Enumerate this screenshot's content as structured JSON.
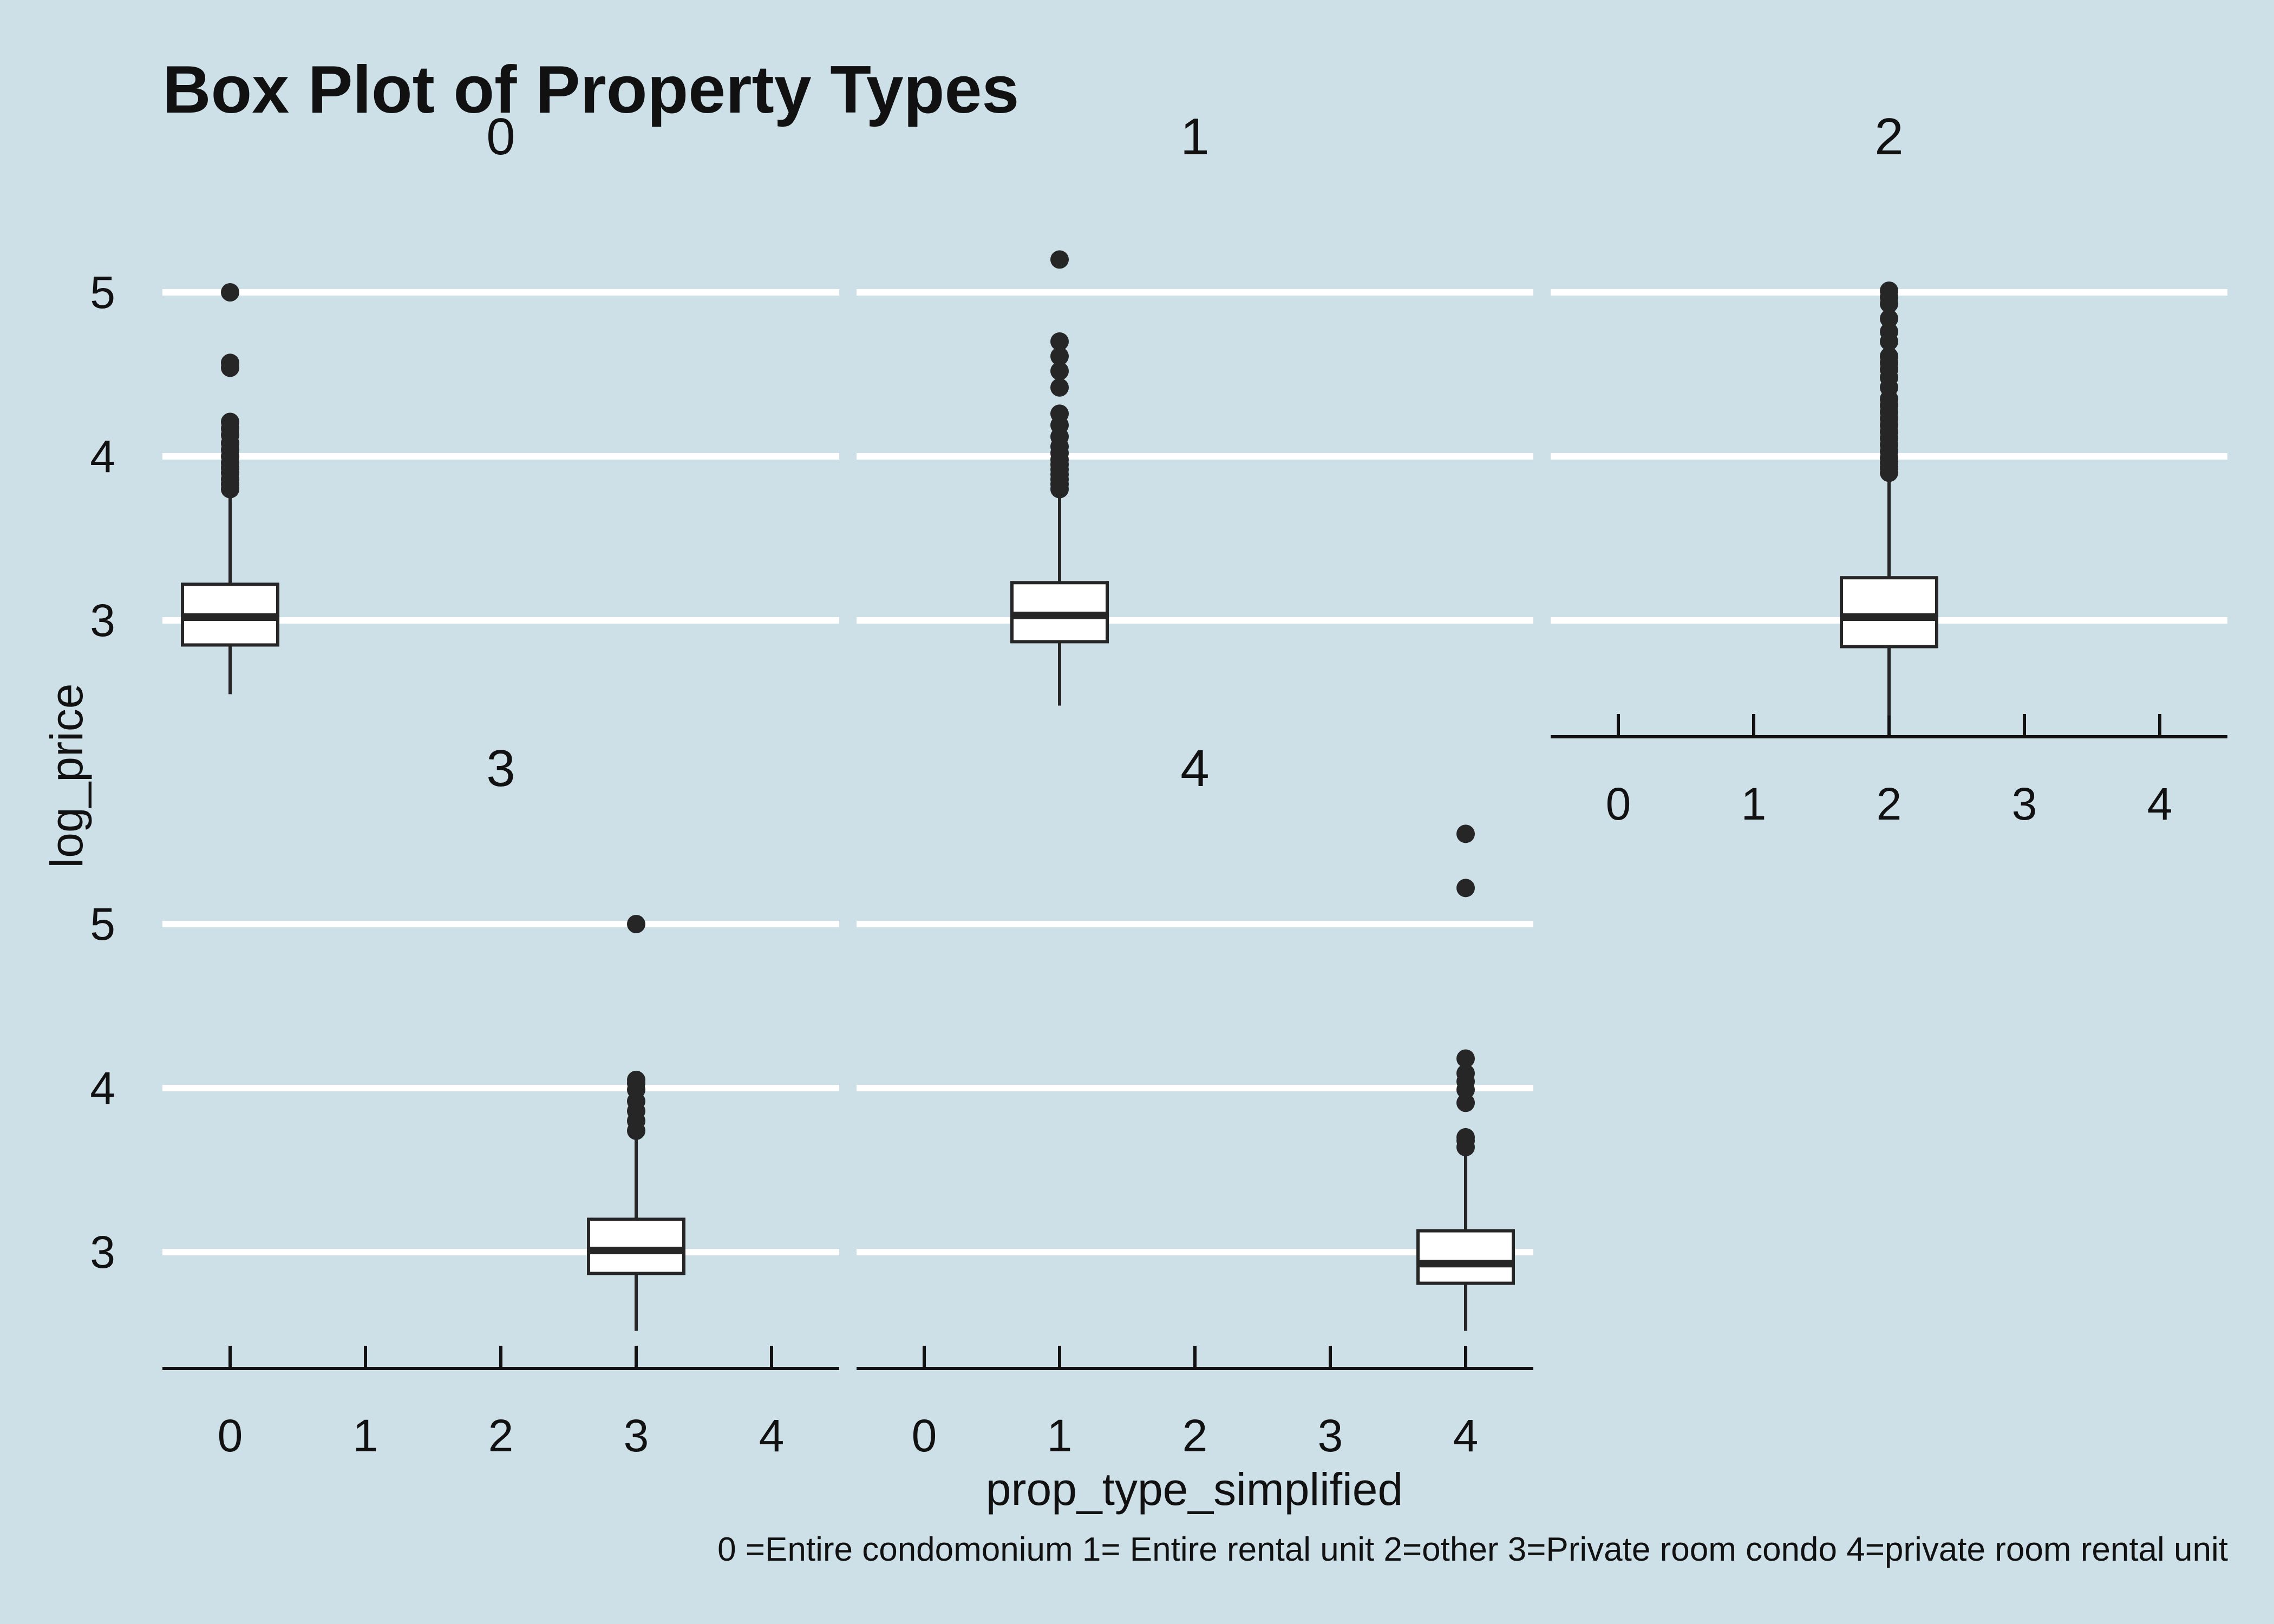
{
  "chart_data": {
    "type": "box",
    "title": "Box Plot of Property Types",
    "xlabel": "prop_type_simplified",
    "ylabel": "log_price",
    "caption": "0 =Entire condomonium 1= Entire rental unit 2=other 3=Private room condo 4=private room rental unit",
    "x_categories": [
      "0",
      "1",
      "2",
      "3",
      "4"
    ],
    "y_ticks": [
      3,
      4,
      5
    ],
    "ylim": [
      2.3,
      5.7
    ],
    "grid": "horizontal major lines only",
    "colors": {
      "background": "#cddfe7",
      "grid": "#ffffff",
      "box_fill": "#ffffff",
      "box_line": "#262626",
      "axis": "#111111"
    },
    "facets": [
      {
        "label": "0",
        "category": 0,
        "box": {
          "lower_whisker": 2.55,
          "q1": 2.85,
          "median": 3.02,
          "q3": 3.22,
          "upper_whisker": 3.78
        },
        "outliers": [
          3.8,
          3.83,
          3.86,
          3.9,
          3.93,
          3.96,
          4.0,
          4.04,
          4.08,
          4.13,
          4.17,
          4.21,
          4.54,
          4.57,
          5.0
        ]
      },
      {
        "label": "1",
        "category": 1,
        "box": {
          "lower_whisker": 2.48,
          "q1": 2.87,
          "median": 3.03,
          "q3": 3.23,
          "upper_whisker": 3.78
        },
        "outliers": [
          3.8,
          3.83,
          3.86,
          3.89,
          3.92,
          3.95,
          3.98,
          4.02,
          4.06,
          4.12,
          4.19,
          4.26,
          4.42,
          4.52,
          4.61,
          4.7,
          5.2
        ]
      },
      {
        "label": "2",
        "category": 2,
        "box": {
          "lower_whisker": 2.42,
          "q1": 2.84,
          "median": 3.02,
          "q3": 3.26,
          "upper_whisker": 3.88
        },
        "outliers": [
          3.9,
          3.93,
          3.96,
          3.99,
          4.03,
          4.07,
          4.11,
          4.15,
          4.19,
          4.23,
          4.27,
          4.31,
          4.35,
          4.42,
          4.48,
          4.53,
          4.57,
          4.61,
          4.7,
          4.76,
          4.84,
          4.93,
          4.97,
          5.01
        ]
      },
      {
        "label": "3",
        "category": 3,
        "box": {
          "lower_whisker": 2.52,
          "q1": 2.87,
          "median": 3.01,
          "q3": 3.2,
          "upper_whisker": 3.72
        },
        "outliers": [
          3.74,
          3.8,
          3.86,
          3.92,
          3.99,
          4.03,
          4.05,
          5.0
        ]
      },
      {
        "label": "4",
        "category": 4,
        "box": {
          "lower_whisker": 2.52,
          "q1": 2.81,
          "median": 2.93,
          "q3": 3.13,
          "upper_whisker": 3.62
        },
        "outliers": [
          3.64,
          3.68,
          3.7,
          3.91,
          3.99,
          4.04,
          4.09,
          4.18,
          5.22,
          5.55
        ]
      }
    ]
  }
}
